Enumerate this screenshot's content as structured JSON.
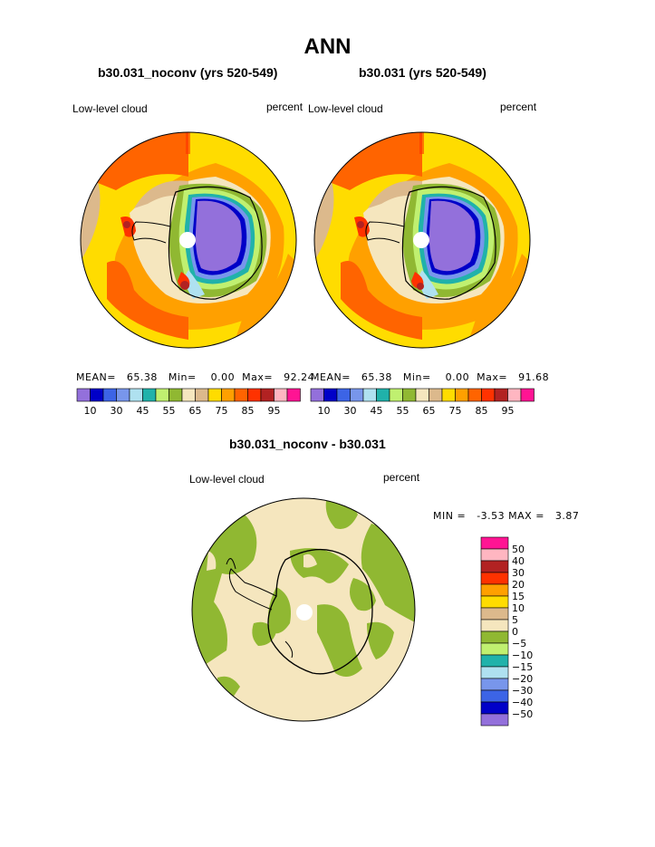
{
  "main_title": "ANN",
  "chart_data": [
    {
      "type": "polar-contour-map",
      "title": "b30.031_noconv (yrs 520-549)",
      "variable_label": "Low-level cloud",
      "units_label": "percent",
      "stats": {
        "mean_label": "MEAN=",
        "mean": "65.38",
        "min_label": "Min=",
        "min": "0.00",
        "max_label": "Max=",
        "max": "92.24"
      },
      "colorbar_ticks": [
        "10",
        "30",
        "45",
        "55",
        "65",
        "75",
        "85",
        "95"
      ],
      "levels": [
        10,
        20,
        30,
        40,
        45,
        50,
        55,
        60,
        65,
        70,
        75,
        80,
        85,
        90,
        95
      ]
    },
    {
      "type": "polar-contour-map",
      "title": "b30.031 (yrs 520-549)",
      "variable_label": "Low-level cloud",
      "units_label": "percent",
      "stats": {
        "mean_label": "MEAN=",
        "mean": "65.38",
        "min_label": "Min=",
        "min": "0.00",
        "max_label": "Max=",
        "max": "91.68"
      },
      "colorbar_ticks": [
        "10",
        "30",
        "45",
        "55",
        "65",
        "75",
        "85",
        "95"
      ],
      "levels": [
        10,
        20,
        30,
        40,
        45,
        50,
        55,
        60,
        65,
        70,
        75,
        80,
        85,
        90,
        95
      ]
    },
    {
      "type": "polar-contour-map",
      "title": "b30.031_noconv - b30.031",
      "variable_label": "Low-level cloud",
      "units_label": "percent",
      "stats": {
        "min_label": "MIN =",
        "min": "-3.53",
        "max_label": "MAX =",
        "max": "3.87"
      },
      "colorbar_ticks": [
        "50",
        "40",
        "30",
        "20",
        "15",
        "10",
        "5",
        "0",
        "−5",
        "−10",
        "−15",
        "−20",
        "−30",
        "−40",
        "−50"
      ],
      "levels": [
        50,
        40,
        30,
        20,
        15,
        10,
        5,
        0,
        -5,
        -10,
        -15,
        -20,
        -30,
        -40,
        -50
      ]
    }
  ],
  "colors": {
    "abs_palette": [
      "#9370db",
      "#0000c8",
      "#3c64e6",
      "#7896eb",
      "#afe1f0",
      "#20b2aa",
      "#c0f070",
      "#90b832",
      "#f5e6be",
      "#dcb98c",
      "#ffdc00",
      "#ffa000",
      "#ff6400",
      "#ff3200",
      "#b22222",
      "#ffb6c1",
      "#ff1493"
    ],
    "diff_palette": [
      "#ff1493",
      "#ffb6c1",
      "#b22222",
      "#ff3200",
      "#ffa000",
      "#ffdc00",
      "#dcb98c",
      "#f5e6be",
      "#90b832",
      "#c0f070",
      "#20b2aa",
      "#afe1f0",
      "#7896eb",
      "#3c64e6",
      "#0000c8",
      "#9370db"
    ]
  }
}
